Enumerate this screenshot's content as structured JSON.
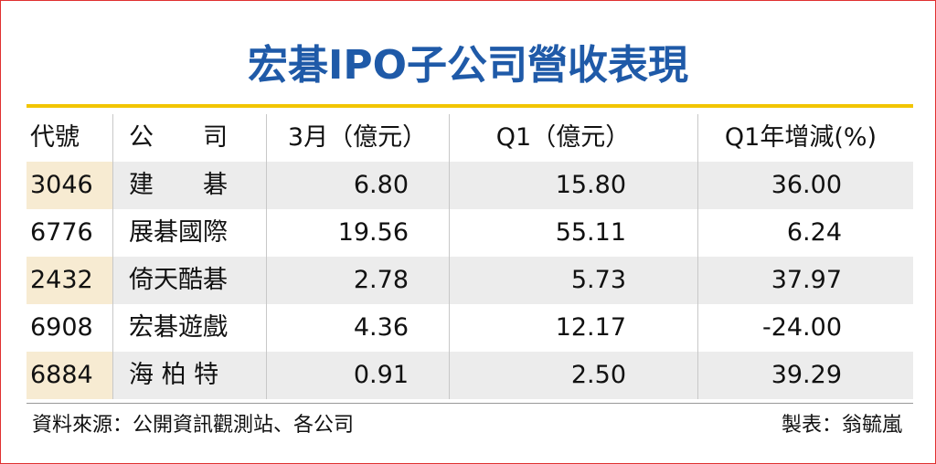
{
  "header": {
    "title": "宏碁IPO子公司營收表現"
  },
  "table": {
    "columns": [
      "代號",
      "公　　司",
      "3月（億元）",
      "Q1（億元）",
      "Q1年增減(%)"
    ],
    "rows": [
      [
        "3046",
        "建　　碁",
        "6.80",
        "15.80",
        "36.00"
      ],
      [
        "6776",
        "展碁國際",
        "19.56",
        "55.11",
        "6.24"
      ],
      [
        "2432",
        "倚天酷碁",
        "2.78",
        "5.73",
        "37.97"
      ],
      [
        "6908",
        "宏碁遊戲",
        "4.36",
        "12.17",
        "-24.00"
      ],
      [
        "6884",
        "海 柏 特",
        "0.91",
        "2.50",
        "39.29"
      ]
    ]
  },
  "footer": {
    "source": "資料來源：公開資訊觀測站、各公司",
    "author": "製表：翁毓嵐"
  }
}
